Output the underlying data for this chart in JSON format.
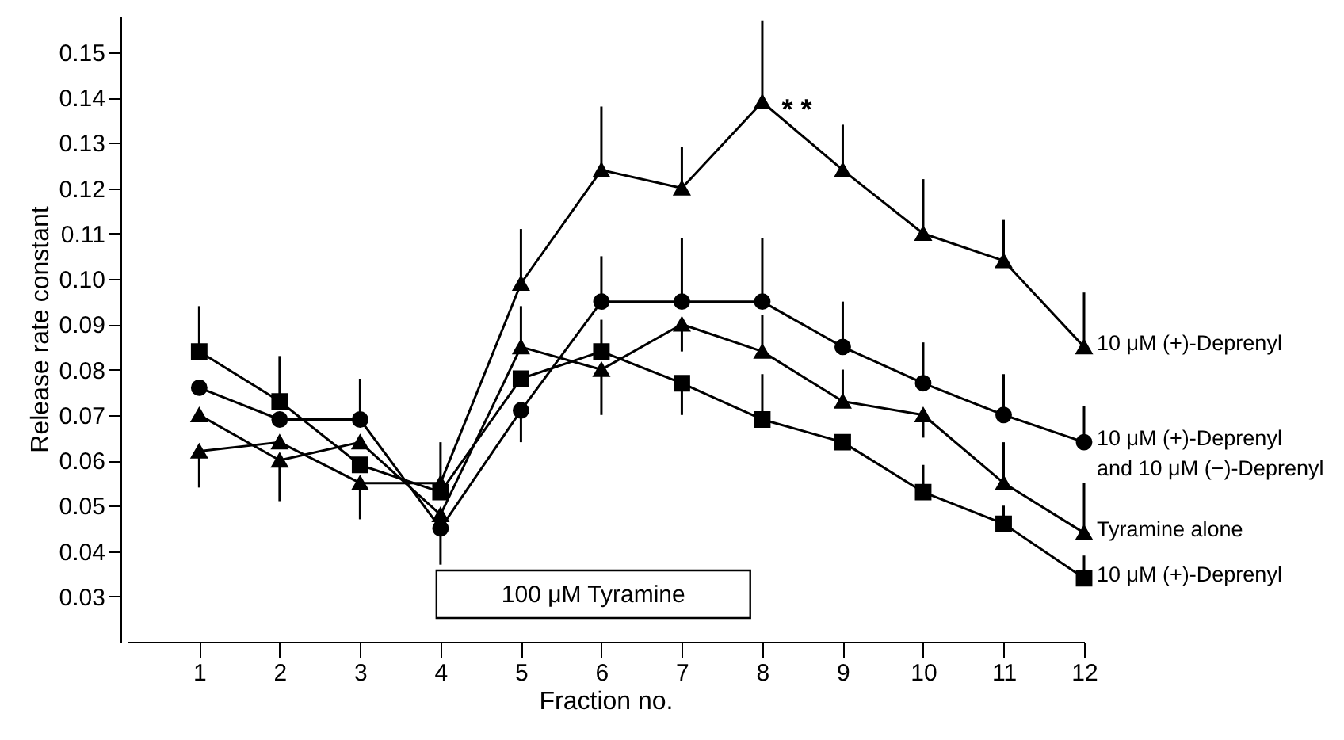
{
  "chart_data": {
    "type": "line",
    "xlabel": "Fraction no.",
    "ylabel": "Release rate constant",
    "x": [
      1,
      2,
      3,
      4,
      5,
      6,
      7,
      8,
      9,
      10,
      11,
      12
    ],
    "xlim": [
      0.1,
      12
    ],
    "xticks": [
      1,
      2,
      3,
      4,
      5,
      6,
      7,
      8,
      9,
      10,
      11,
      12
    ],
    "ylim": [
      0.02,
      0.158
    ],
    "yticks": [
      0.03,
      0.04,
      0.05,
      0.06,
      0.07,
      0.08,
      0.09,
      {
        "value": 0.1,
        "label": "0.10"
      },
      0.11,
      0.12,
      0.13,
      0.14,
      0.15
    ],
    "series": [
      {
        "name": "10 μM (+)-Deprenyl",
        "color": "#000000",
        "marker": "triangle",
        "values": [
          0.062,
          0.064,
          0.055,
          0.055,
          0.099,
          0.124,
          0.12,
          0.139,
          0.124,
          0.11,
          0.104,
          0.085
        ],
        "errors": [
          [
            0.054,
            0.062
          ],
          null,
          [
            0.047,
            0.055
          ],
          [
            0.055,
            0.064
          ],
          [
            0.099,
            0.111
          ],
          [
            0.124,
            0.138
          ],
          [
            0.12,
            0.129
          ],
          [
            0.139,
            0.157
          ],
          [
            0.124,
            0.134
          ],
          [
            0.11,
            0.122
          ],
          [
            0.104,
            0.113
          ],
          [
            0.085,
            0.097
          ]
        ]
      },
      {
        "name": "10 μM (+)-Deprenyl and 10 μM (−)-Deprenyl",
        "color": "#000000",
        "marker": "circle",
        "values": [
          0.076,
          0.069,
          0.069,
          0.045,
          0.071,
          0.095,
          0.095,
          0.095,
          0.085,
          0.077,
          0.07,
          0.064
        ],
        "errors": [
          null,
          null,
          [
            0.069,
            0.078
          ],
          [
            0.037,
            0.045
          ],
          [
            0.064,
            0.071
          ],
          [
            0.095,
            0.105
          ],
          [
            0.095,
            0.109
          ],
          [
            0.095,
            0.109
          ],
          [
            0.085,
            0.095
          ],
          [
            0.077,
            0.086
          ],
          [
            0.07,
            0.079
          ],
          [
            0.064,
            0.072
          ]
        ]
      },
      {
        "name": "Tyramine alone",
        "color": "#000000",
        "marker": "triangle",
        "values": [
          0.07,
          0.06,
          0.064,
          0.048,
          0.085,
          0.08,
          0.09,
          0.084,
          0.073,
          0.07,
          0.055,
          0.044
        ],
        "errors": [
          null,
          [
            0.051,
            0.06
          ],
          null,
          null,
          [
            0.085,
            0.094
          ],
          [
            0.07,
            0.08
          ],
          [
            0.084,
            0.09
          ],
          [
            0.084,
            0.092
          ],
          [
            0.073,
            0.08
          ],
          [
            0.065,
            0.07
          ],
          [
            0.055,
            0.064
          ],
          [
            0.044,
            0.055
          ]
        ]
      },
      {
        "name": "10 μM (+)-Deprenyl",
        "color": "#000000",
        "marker": "square",
        "values": [
          0.084,
          0.073,
          0.059,
          0.053,
          0.078,
          0.084,
          0.077,
          0.069,
          0.064,
          0.053,
          0.046,
          0.034
        ],
        "errors": [
          [
            0.084,
            0.094
          ],
          [
            0.073,
            0.083
          ],
          null,
          null,
          null,
          [
            0.084,
            0.091
          ],
          [
            0.07,
            0.077
          ],
          [
            0.069,
            0.079
          ],
          null,
          [
            0.053,
            0.059
          ],
          [
            0.046,
            0.05
          ],
          [
            0.034,
            0.039
          ]
        ]
      }
    ],
    "bands": [
      {
        "axis": "x",
        "from": 3.95,
        "to": 7.85,
        "label": "100 μM Tyramine"
      }
    ],
    "annotations": [
      "* *"
    ]
  }
}
